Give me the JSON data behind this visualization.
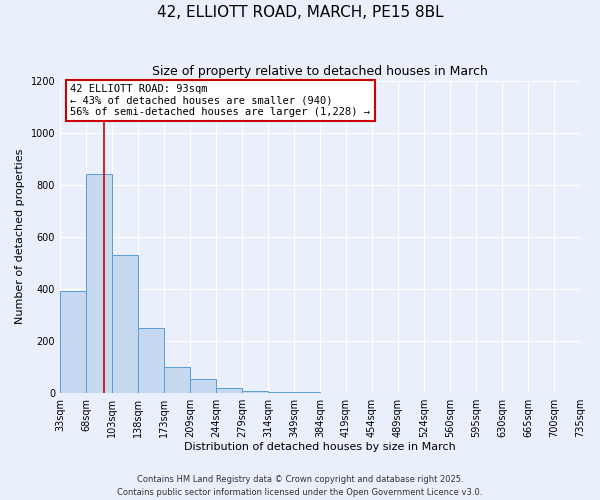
{
  "title": "42, ELLIOTT ROAD, MARCH, PE15 8BL",
  "subtitle": "Size of property relative to detached houses in March",
  "xlabel": "Distribution of detached houses by size in March",
  "ylabel": "Number of detached properties",
  "bin_edges": [
    33,
    68,
    103,
    138,
    173,
    209,
    244,
    279,
    314,
    349,
    384,
    419,
    454,
    489,
    524,
    560,
    595,
    630,
    665,
    700,
    735
  ],
  "bar_heights": [
    390,
    840,
    530,
    248,
    97,
    52,
    18,
    8,
    4,
    3,
    0,
    0,
    0,
    0,
    0,
    0,
    0,
    0,
    0,
    0
  ],
  "bar_color": "#c5d8f0",
  "bar_edge_color": "#5b9bd5",
  "ylim": [
    0,
    1200
  ],
  "yticks": [
    0,
    200,
    400,
    600,
    800,
    1000,
    1200
  ],
  "vline_x": 93,
  "vline_color": "#cc0000",
  "annotation_title": "42 ELLIOTT ROAD: 93sqm",
  "annotation_line1": "← 43% of detached houses are smaller (940)",
  "annotation_line2": "56% of semi-detached houses are larger (1,228) →",
  "annotation_box_color": "#ffffff",
  "annotation_box_edge": "#cc0000",
  "bg_color": "#eaf0fb",
  "footnote1": "Contains HM Land Registry data © Crown copyright and database right 2025.",
  "footnote2": "Contains public sector information licensed under the Open Government Licence v3.0.",
  "title_fontsize": 11,
  "subtitle_fontsize": 9,
  "axis_label_fontsize": 8,
  "tick_fontsize": 7,
  "annotation_fontsize": 7.5
}
